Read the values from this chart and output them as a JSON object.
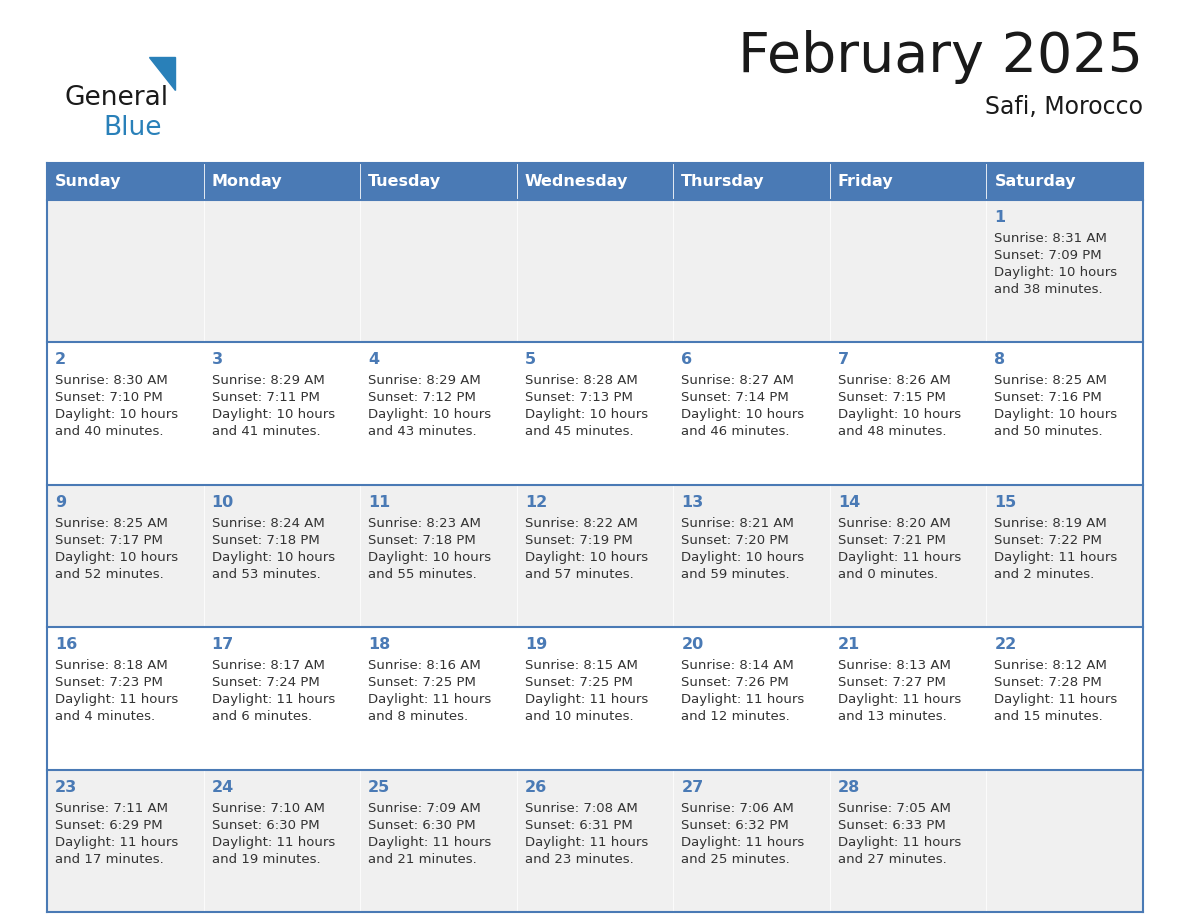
{
  "title": "February 2025",
  "subtitle": "Safi, Morocco",
  "header_color": "#4a7ab5",
  "header_text_color": "#ffffff",
  "days_of_week": [
    "Sunday",
    "Monday",
    "Tuesday",
    "Wednesday",
    "Thursday",
    "Friday",
    "Saturday"
  ],
  "cell_bg_even": "#f0f0f0",
  "cell_bg_white": "#ffffff",
  "border_color": "#4a7ab5",
  "day_num_color": "#4a7ab5",
  "info_color": "#333333",
  "logo_general_color": "#1a1a1a",
  "logo_blue_color": "#2980b9",
  "logo_triangle_color": "#2980b9",
  "calendar": [
    [
      null,
      null,
      null,
      null,
      null,
      null,
      {
        "day": 1,
        "sunrise": "8:31 AM",
        "sunset": "7:09 PM",
        "daylight_h": "10 hours",
        "daylight_m": "and 38 minutes."
      }
    ],
    [
      {
        "day": 2,
        "sunrise": "8:30 AM",
        "sunset": "7:10 PM",
        "daylight_h": "10 hours",
        "daylight_m": "and 40 minutes."
      },
      {
        "day": 3,
        "sunrise": "8:29 AM",
        "sunset": "7:11 PM",
        "daylight_h": "10 hours",
        "daylight_m": "and 41 minutes."
      },
      {
        "day": 4,
        "sunrise": "8:29 AM",
        "sunset": "7:12 PM",
        "daylight_h": "10 hours",
        "daylight_m": "and 43 minutes."
      },
      {
        "day": 5,
        "sunrise": "8:28 AM",
        "sunset": "7:13 PM",
        "daylight_h": "10 hours",
        "daylight_m": "and 45 minutes."
      },
      {
        "day": 6,
        "sunrise": "8:27 AM",
        "sunset": "7:14 PM",
        "daylight_h": "10 hours",
        "daylight_m": "and 46 minutes."
      },
      {
        "day": 7,
        "sunrise": "8:26 AM",
        "sunset": "7:15 PM",
        "daylight_h": "10 hours",
        "daylight_m": "and 48 minutes."
      },
      {
        "day": 8,
        "sunrise": "8:25 AM",
        "sunset": "7:16 PM",
        "daylight_h": "10 hours",
        "daylight_m": "and 50 minutes."
      }
    ],
    [
      {
        "day": 9,
        "sunrise": "8:25 AM",
        "sunset": "7:17 PM",
        "daylight_h": "10 hours",
        "daylight_m": "and 52 minutes."
      },
      {
        "day": 10,
        "sunrise": "8:24 AM",
        "sunset": "7:18 PM",
        "daylight_h": "10 hours",
        "daylight_m": "and 53 minutes."
      },
      {
        "day": 11,
        "sunrise": "8:23 AM",
        "sunset": "7:18 PM",
        "daylight_h": "10 hours",
        "daylight_m": "and 55 minutes."
      },
      {
        "day": 12,
        "sunrise": "8:22 AM",
        "sunset": "7:19 PM",
        "daylight_h": "10 hours",
        "daylight_m": "and 57 minutes."
      },
      {
        "day": 13,
        "sunrise": "8:21 AM",
        "sunset": "7:20 PM",
        "daylight_h": "10 hours",
        "daylight_m": "and 59 minutes."
      },
      {
        "day": 14,
        "sunrise": "8:20 AM",
        "sunset": "7:21 PM",
        "daylight_h": "11 hours",
        "daylight_m": "and 0 minutes."
      },
      {
        "day": 15,
        "sunrise": "8:19 AM",
        "sunset": "7:22 PM",
        "daylight_h": "11 hours",
        "daylight_m": "and 2 minutes."
      }
    ],
    [
      {
        "day": 16,
        "sunrise": "8:18 AM",
        "sunset": "7:23 PM",
        "daylight_h": "11 hours",
        "daylight_m": "and 4 minutes."
      },
      {
        "day": 17,
        "sunrise": "8:17 AM",
        "sunset": "7:24 PM",
        "daylight_h": "11 hours",
        "daylight_m": "and 6 minutes."
      },
      {
        "day": 18,
        "sunrise": "8:16 AM",
        "sunset": "7:25 PM",
        "daylight_h": "11 hours",
        "daylight_m": "and 8 minutes."
      },
      {
        "day": 19,
        "sunrise": "8:15 AM",
        "sunset": "7:25 PM",
        "daylight_h": "11 hours",
        "daylight_m": "and 10 minutes."
      },
      {
        "day": 20,
        "sunrise": "8:14 AM",
        "sunset": "7:26 PM",
        "daylight_h": "11 hours",
        "daylight_m": "and 12 minutes."
      },
      {
        "day": 21,
        "sunrise": "8:13 AM",
        "sunset": "7:27 PM",
        "daylight_h": "11 hours",
        "daylight_m": "and 13 minutes."
      },
      {
        "day": 22,
        "sunrise": "8:12 AM",
        "sunset": "7:28 PM",
        "daylight_h": "11 hours",
        "daylight_m": "and 15 minutes."
      }
    ],
    [
      {
        "day": 23,
        "sunrise": "7:11 AM",
        "sunset": "6:29 PM",
        "daylight_h": "11 hours",
        "daylight_m": "and 17 minutes."
      },
      {
        "day": 24,
        "sunrise": "7:10 AM",
        "sunset": "6:30 PM",
        "daylight_h": "11 hours",
        "daylight_m": "and 19 minutes."
      },
      {
        "day": 25,
        "sunrise": "7:09 AM",
        "sunset": "6:30 PM",
        "daylight_h": "11 hours",
        "daylight_m": "and 21 minutes."
      },
      {
        "day": 26,
        "sunrise": "7:08 AM",
        "sunset": "6:31 PM",
        "daylight_h": "11 hours",
        "daylight_m": "and 23 minutes."
      },
      {
        "day": 27,
        "sunrise": "7:06 AM",
        "sunset": "6:32 PM",
        "daylight_h": "11 hours",
        "daylight_m": "and 25 minutes."
      },
      {
        "day": 28,
        "sunrise": "7:05 AM",
        "sunset": "6:33 PM",
        "daylight_h": "11 hours",
        "daylight_m": "and 27 minutes."
      },
      null
    ]
  ]
}
